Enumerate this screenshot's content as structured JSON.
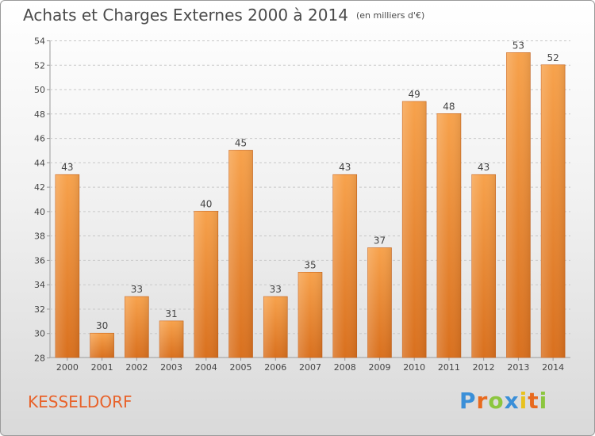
{
  "page": {
    "title": "Achats et Charges Externes 2000 à 2014",
    "unit": "(en milliers d'€)",
    "city": "KESSELDORF",
    "logo": {
      "letters": [
        "P",
        "r",
        "o",
        "x",
        "i",
        "t",
        "i"
      ],
      "colors": [
        "#3a8fd8",
        "#e86a1e",
        "#8cc63f",
        "#3a8fd8",
        "#e8c21e",
        "#e86a1e",
        "#8cc63f"
      ]
    }
  },
  "chart_data": {
    "type": "bar",
    "categories": [
      "2000",
      "2001",
      "2002",
      "2003",
      "2004",
      "2005",
      "2006",
      "2007",
      "2008",
      "2009",
      "2010",
      "2011",
      "2012",
      "2013",
      "2014"
    ],
    "values": [
      43,
      30,
      33,
      31,
      40,
      45,
      33,
      35,
      43,
      37,
      49,
      48,
      43,
      53,
      52
    ],
    "title": "Achats et Charges Externes 2000 à 2014",
    "xlabel": "",
    "ylabel": "",
    "ylim": [
      28,
      54
    ],
    "yticks": [
      28,
      30,
      32,
      34,
      36,
      38,
      40,
      42,
      44,
      46,
      48,
      50,
      52,
      54
    ],
    "grid": true,
    "bar_color": "#f0903a"
  }
}
